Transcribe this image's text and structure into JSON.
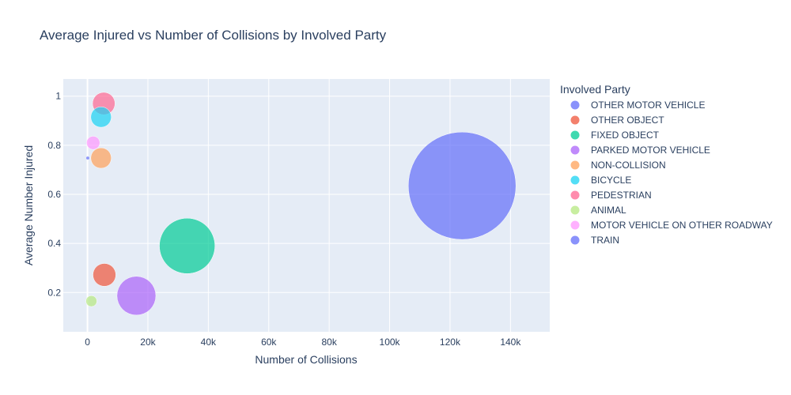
{
  "chart_data": {
    "type": "scatter",
    "title": "Average Injured vs Number of Collisions by Involved Party",
    "xlabel": "Number of Collisions",
    "ylabel": "Average Number Injured",
    "xlim": [
      -8000,
      153000
    ],
    "ylim": [
      0.04,
      1.07
    ],
    "x_ticks": [
      0,
      20000,
      40000,
      60000,
      80000,
      100000,
      120000,
      140000
    ],
    "x_tick_labels": [
      "0",
      "20k",
      "40k",
      "60k",
      "80k",
      "100k",
      "120k",
      "140k"
    ],
    "y_ticks": [
      0.2,
      0.4,
      0.6,
      0.8,
      1
    ],
    "y_tick_labels": [
      "0.2",
      "0.4",
      "0.6",
      "0.8",
      "1"
    ],
    "grid": true,
    "legend_title": "Involved Party",
    "legend_position": "right",
    "series": [
      {
        "name": "OTHER MOTOR VEHICLE",
        "color": "#636efa",
        "x": 124000,
        "y": 0.635,
        "size": 124000
      },
      {
        "name": "OTHER OBJECT",
        "color": "#ef553b",
        "x": 5600,
        "y": 0.272,
        "size": 5600
      },
      {
        "name": "FIXED OBJECT",
        "color": "#00cc96",
        "x": 33000,
        "y": 0.39,
        "size": 33000
      },
      {
        "name": "PARKED MOTOR VEHICLE",
        "color": "#ab63fa",
        "x": 16200,
        "y": 0.187,
        "size": 16200
      },
      {
        "name": "NON-COLLISION",
        "color": "#ffa15a",
        "x": 4500,
        "y": 0.748,
        "size": 4500
      },
      {
        "name": "BICYCLE",
        "color": "#19d3f3",
        "x": 4500,
        "y": 0.915,
        "size": 4500
      },
      {
        "name": "PEDESTRIAN",
        "color": "#ff6692",
        "x": 5400,
        "y": 0.97,
        "size": 5400
      },
      {
        "name": "ANIMAL",
        "color": "#b6e880",
        "x": 1300,
        "y": 0.165,
        "size": 1300
      },
      {
        "name": "MOTOR VEHICLE ON OTHER ROADWAY",
        "color": "#ff97ff",
        "x": 1900,
        "y": 0.81,
        "size": 1900
      },
      {
        "name": "TRAIN",
        "color": "#636efa",
        "x": 100,
        "y": 0.748,
        "size": 100
      }
    ]
  }
}
